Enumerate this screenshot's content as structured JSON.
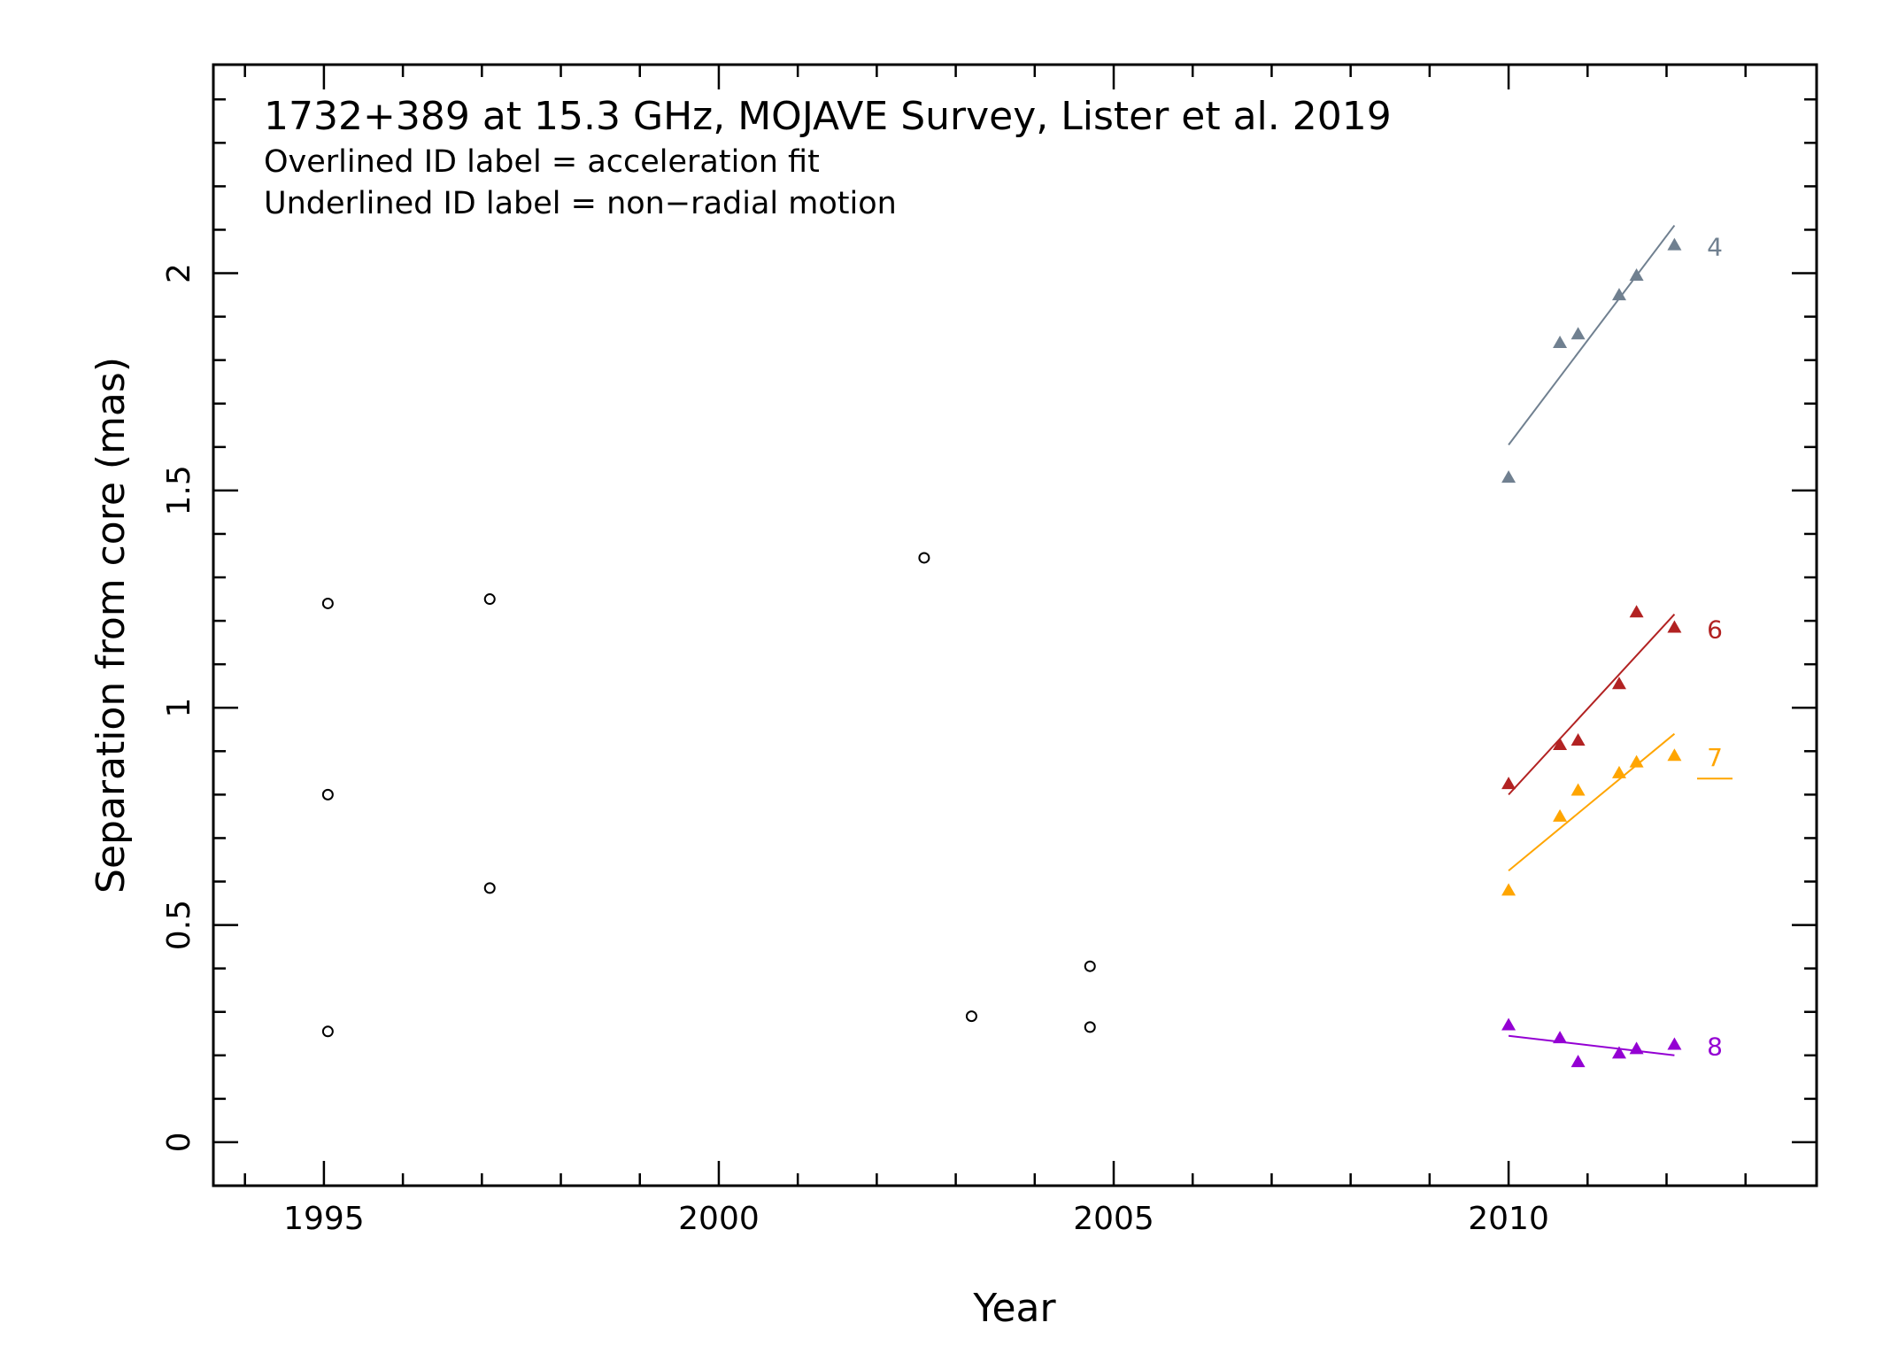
{
  "chart_data": {
    "type": "scatter",
    "title": "1732+389 at 15.3 GHz, MOJAVE Survey, Lister et al. 2019",
    "subtitle_lines": [
      "Overlined ID label = acceleration fit",
      "Underlined ID label = non−radial motion"
    ],
    "xlabel": "Year",
    "ylabel": "Separation from core (mas)",
    "xlim": [
      1993.6,
      2013.9
    ],
    "ylim": [
      -0.1,
      2.48
    ],
    "x_ticks_major": [
      1995,
      2000,
      2005,
      2010
    ],
    "x_tick_labels": [
      "1995",
      "2000",
      "2005",
      "2010"
    ],
    "y_ticks_major": [
      0,
      0.5,
      1,
      1.5,
      2
    ],
    "y_tick_labels": [
      "0",
      "0.5",
      "1",
      "1.5",
      "2"
    ],
    "unassigned_points": {
      "marker": "open-circle",
      "color": "#000000",
      "x": [
        1995.05,
        1995.05,
        1995.05,
        1997.1,
        1997.1,
        2002.6,
        2003.2,
        2004.7,
        2004.7
      ],
      "y": [
        1.24,
        0.8,
        0.255,
        1.25,
        0.585,
        1.345,
        0.29,
        0.405,
        0.265
      ]
    },
    "series": [
      {
        "name": "4",
        "color": "#708090",
        "underlined": false,
        "x": [
          2010.0,
          2010.65,
          2010.88,
          2011.4,
          2011.62,
          2012.1
        ],
        "y": [
          1.53,
          1.84,
          1.86,
          1.95,
          1.995,
          2.065
        ],
        "fit": {
          "x": [
            2010.0,
            2012.1
          ],
          "y": [
            1.605,
            2.11
          ]
        }
      },
      {
        "name": "6",
        "color": "#b22222",
        "underlined": false,
        "x": [
          2010.0,
          2010.65,
          2010.88,
          2011.4,
          2011.62,
          2012.1
        ],
        "y": [
          0.825,
          0.915,
          0.925,
          1.055,
          1.22,
          1.185
        ],
        "fit": {
          "x": [
            2010.0,
            2012.1
          ],
          "y": [
            0.8,
            1.215
          ]
        }
      },
      {
        "name": "7",
        "color": "#ffa500",
        "underlined": true,
        "x": [
          2010.0,
          2010.65,
          2010.88,
          2011.4,
          2011.62,
          2012.1
        ],
        "y": [
          0.58,
          0.75,
          0.81,
          0.85,
          0.875,
          0.89
        ],
        "fit": {
          "x": [
            2010.0,
            2012.1
          ],
          "y": [
            0.625,
            0.94
          ]
        }
      },
      {
        "name": "8",
        "color": "#9400d3",
        "underlined": false,
        "x": [
          2010.0,
          2010.65,
          2010.88,
          2011.4,
          2011.62,
          2012.1
        ],
        "y": [
          0.27,
          0.24,
          0.185,
          0.205,
          0.215,
          0.225
        ],
        "fit": {
          "x": [
            2010.0,
            2012.1
          ],
          "y": [
            0.245,
            0.2
          ]
        }
      }
    ],
    "grid": false,
    "legend": "none"
  }
}
